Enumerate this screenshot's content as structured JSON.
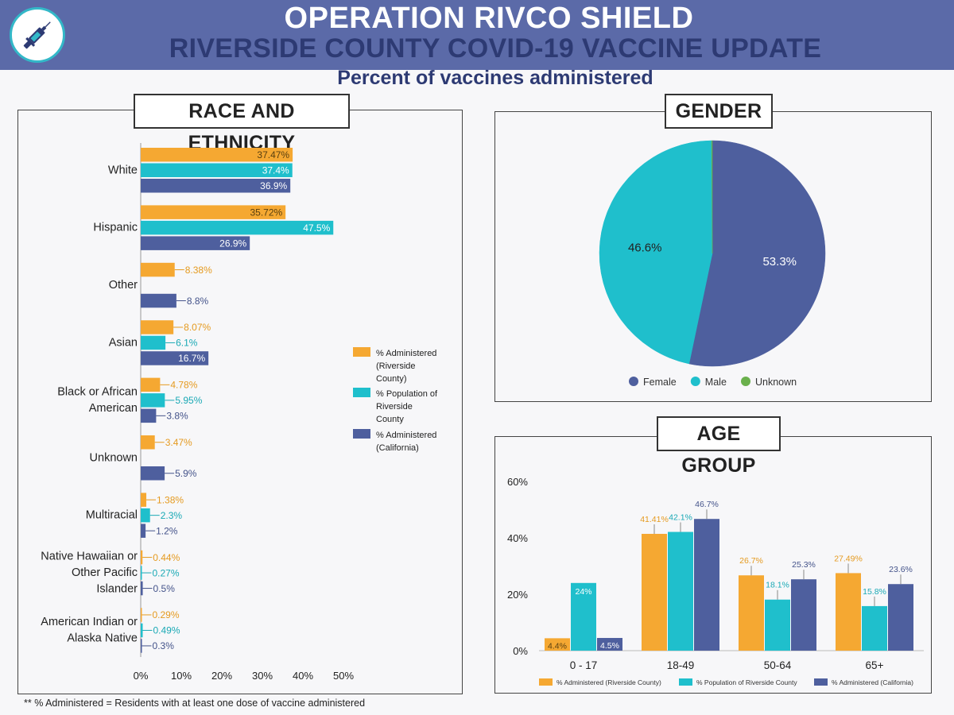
{
  "header": {
    "title_line1": "OPERATION RIVCO SHIELD",
    "title_line2": "RIVERSIDE COUNTY COVID-19 VACCINE UPDATE",
    "subtitle": "Percent of vaccines administered",
    "logo_icon": "syringe-icon"
  },
  "footnote": "** % Administered = Residents with at least one dose of vaccine administered",
  "colors": {
    "orange": "#f5a832",
    "teal": "#1fbfcc",
    "navy": "#4e5f9e",
    "green": "#6ab04c"
  },
  "chart_data": [
    {
      "id": "race",
      "panel_title": "RACE AND ETHNICITY",
      "type": "bar",
      "orientation": "horizontal",
      "categories": [
        [
          "White"
        ],
        [
          "Hispanic"
        ],
        [
          "Other"
        ],
        [
          "Asian"
        ],
        [
          "Black or African",
          "American"
        ],
        [
          "Unknown"
        ],
        [
          "Multiracial"
        ],
        [
          "Native Hawaiian or",
          "Other Pacific",
          "Islander"
        ],
        [
          "American Indian or",
          "Alaska Native"
        ]
      ],
      "series": [
        {
          "name": "% Administered (Riverside County)",
          "legend_lines": [
            "% Administered",
            "(Riverside",
            "County)"
          ],
          "color": "#f5a832",
          "values": [
            37.47,
            35.72,
            8.38,
            8.07,
            4.78,
            3.47,
            1.38,
            0.44,
            0.29
          ],
          "labels": [
            "37.47%",
            "35.72%",
            "8.38%",
            "8.07%",
            "4.78%",
            "3.47%",
            "1.38%",
            "0.44%",
            "0.29%"
          ]
        },
        {
          "name": "% Population of Riverside County",
          "legend_lines": [
            "% Population of",
            "Riverside",
            "County"
          ],
          "color": "#1fbfcc",
          "values": [
            37.4,
            47.5,
            null,
            6.1,
            5.95,
            null,
            2.3,
            0.27,
            0.49
          ],
          "labels": [
            "37.4%",
            "47.5%",
            "",
            "6.1%",
            "5.95%",
            "",
            "2.3%",
            "0.27%",
            "0.49%"
          ]
        },
        {
          "name": "% Administered (California)",
          "legend_lines": [
            "% Administered",
            "(California)"
          ],
          "color": "#4e5f9e",
          "values": [
            36.9,
            26.9,
            8.8,
            16.7,
            3.8,
            5.9,
            1.2,
            0.5,
            0.3
          ],
          "labels": [
            "36.9%",
            "26.9%",
            "8.8%",
            "16.7%",
            "3.8%",
            "5.9%",
            "1.2%",
            "0.5%",
            "0.3%"
          ]
        }
      ],
      "x_ticks": [
        "0%",
        "10%",
        "20%",
        "30%",
        "40%",
        "50%"
      ],
      "xlim": [
        0,
        50
      ]
    },
    {
      "id": "gender",
      "panel_title": "GENDER",
      "type": "pie",
      "slices": [
        {
          "name": "Female",
          "value": 53.3,
          "label": "53.3%",
          "color": "#4e5f9e"
        },
        {
          "name": "Male",
          "value": 46.6,
          "label": "46.6%",
          "color": "#1fbfcc"
        },
        {
          "name": "Unknown",
          "value": 0.1,
          "label": "",
          "color": "#6ab04c"
        }
      ]
    },
    {
      "id": "age",
      "panel_title": "AGE GROUP",
      "type": "bar",
      "orientation": "vertical",
      "categories": [
        "0 - 17",
        "18-49",
        "50-64",
        "65+"
      ],
      "series": [
        {
          "name": "% Administered (Riverside County)",
          "color": "#f5a832",
          "values": [
            4.4,
            41.41,
            26.7,
            27.49
          ],
          "labels": [
            "4.4%",
            "41.41%",
            "26.7%",
            "27.49%"
          ]
        },
        {
          "name": "% Population of Riverside County",
          "color": "#1fbfcc",
          "values": [
            24,
            42.1,
            18.1,
            15.8
          ],
          "labels": [
            "24%",
            "42.1%",
            "18.1%",
            "15.8%"
          ]
        },
        {
          "name": "% Administered (California)",
          "color": "#4e5f9e",
          "values": [
            4.5,
            46.7,
            25.3,
            23.6
          ],
          "labels": [
            "4.5%",
            "46.7%",
            "25.3%",
            "23.6%"
          ]
        }
      ],
      "y_ticks": [
        "0%",
        "20%",
        "40%",
        "60%"
      ],
      "ylim": [
        0,
        60
      ]
    }
  ]
}
